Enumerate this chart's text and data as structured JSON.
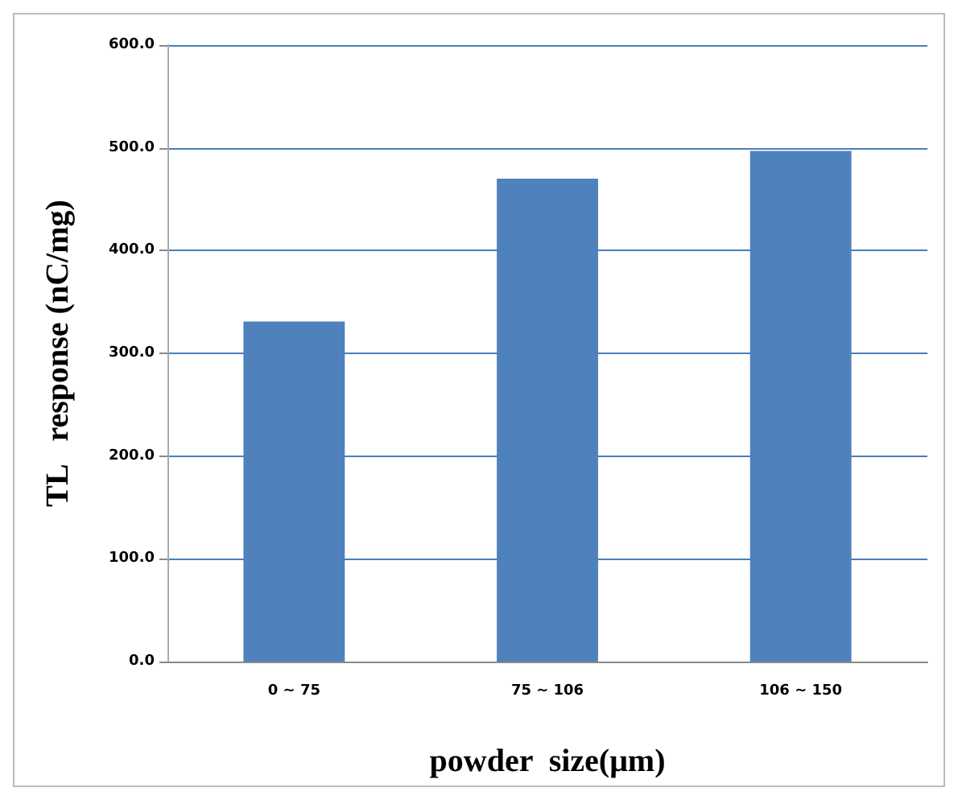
{
  "chart_data": {
    "type": "bar",
    "xlabel": "powder  size(μm)",
    "ylabel": "TL   response (nC/mg)",
    "categories": [
      "0 ~ 75",
      "75 ~ 106",
      "106 ~ 150"
    ],
    "values": [
      331,
      470,
      497
    ],
    "color": "#4f81bd",
    "ylim": [
      0,
      600
    ],
    "yticks": [
      {
        "value": 0,
        "label": "0.0"
      },
      {
        "value": 100,
        "label": "100.0"
      },
      {
        "value": 200,
        "label": "200.0"
      },
      {
        "value": 300,
        "label": "300.0"
      },
      {
        "value": 400,
        "label": "400.0"
      },
      {
        "value": 500,
        "label": "500.0"
      },
      {
        "value": 600,
        "label": "600.0"
      }
    ],
    "grid": "y"
  }
}
